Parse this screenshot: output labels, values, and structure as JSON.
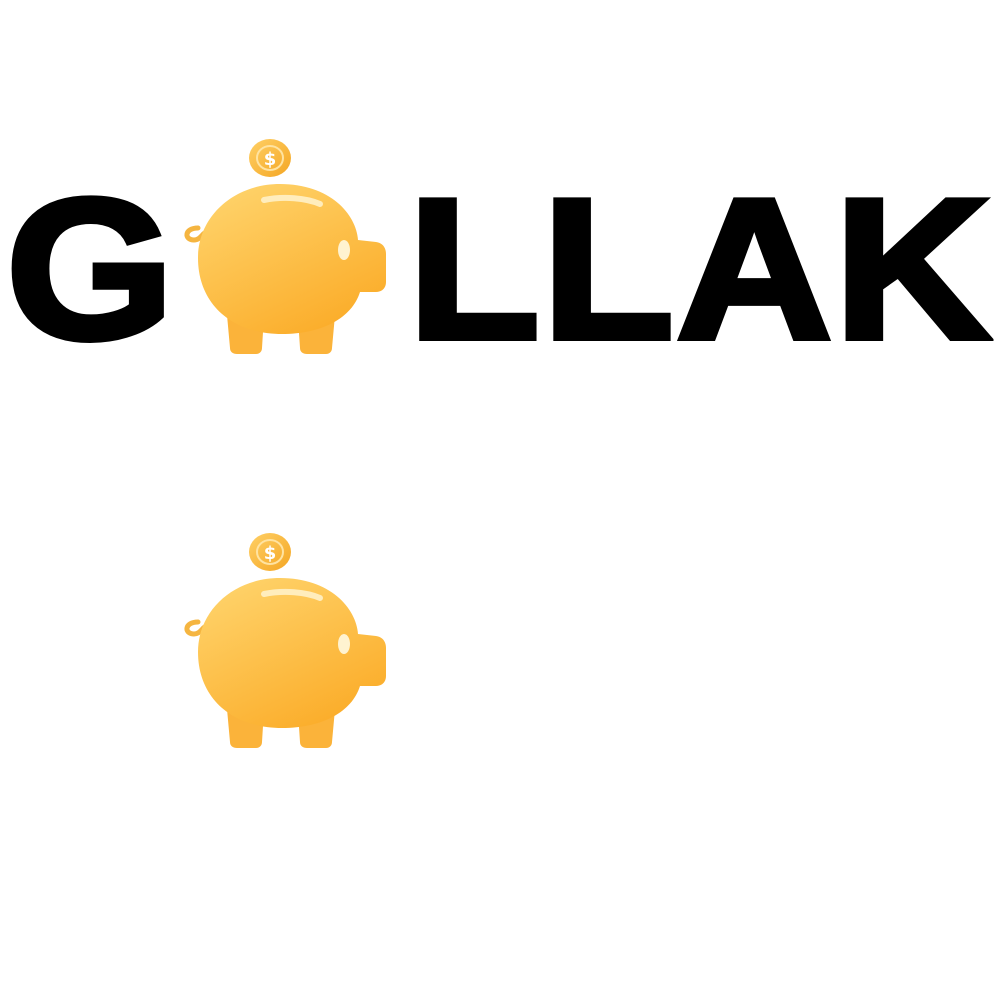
{
  "logo": {
    "wordmark_prefix": "G",
    "wordmark_suffix": "LLAK",
    "wordmark_full": "GOLLAK",
    "icon": "piggy-bank-coin-icon",
    "coin_symbol": "$"
  },
  "colors": {
    "text": "#000000",
    "background": "#ffffff",
    "pig_light": "#FFD36A",
    "pig_dark": "#FBB02F",
    "coin": "#F8B83A"
  }
}
